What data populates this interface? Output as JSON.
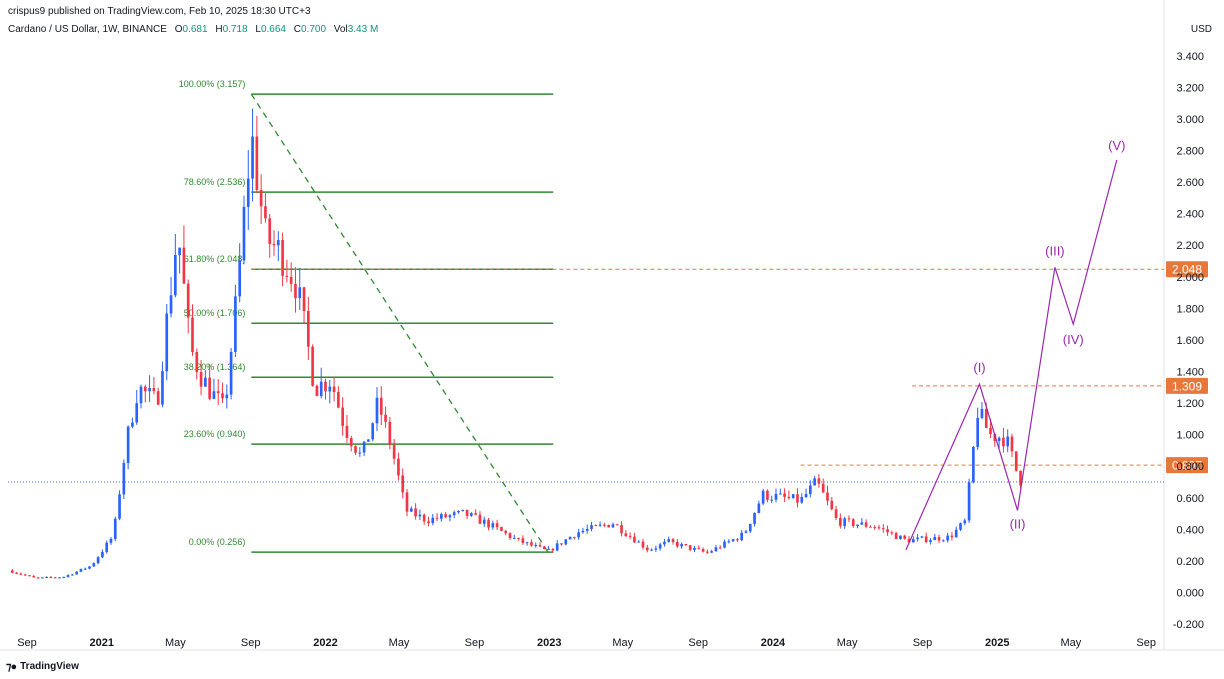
{
  "header": {
    "publisher": "crispus9 published on TradingView.com, Feb 10, 2025 18:30 UTC+3",
    "symbol": "Cardano / US Dollar, 1W, BINANCE",
    "ohlc": [
      {
        "k": "O",
        "v": "0.681"
      },
      {
        "k": "H",
        "v": "0.718"
      },
      {
        "k": "L",
        "v": "0.664"
      },
      {
        "k": "C",
        "v": "0.700"
      },
      {
        "k": "Vol",
        "v": "3.43 M"
      }
    ],
    "currency": "USD"
  },
  "footer": {
    "logo_text": "TradingView"
  },
  "colors": {
    "up": "#2962ff",
    "down": "#f23645",
    "fib": "#2e8b2e",
    "level": "#e8773a",
    "wave": "#9c27b0",
    "last": "#4a6cd4"
  },
  "chart_data": {
    "type": "candlestick",
    "title": "",
    "yaxis": {
      "range": [
        -0.25,
        3.5
      ],
      "ticks": [
        "3.400",
        "3.200",
        "3.000",
        "2.800",
        "2.600",
        "2.400",
        "2.200",
        "2.000",
        "1.800",
        "1.600",
        "1.400",
        "1.200",
        "1.000",
        "0.800",
        "0.600",
        "0.400",
        "0.200",
        "0.000",
        "-0.200"
      ],
      "tick_values": [
        3.4,
        3.2,
        3.0,
        2.8,
        2.6,
        2.4,
        2.2,
        2.0,
        1.8,
        1.6,
        1.4,
        1.2,
        1.0,
        0.8,
        0.6,
        0.4,
        0.2,
        0.0,
        -0.2
      ]
    },
    "xaxis": {
      "range": [
        "2020-08-01",
        "2025-09-30"
      ],
      "ticks": [
        {
          "label": "Sep",
          "date": "2020-09-01",
          "bold": false
        },
        {
          "label": "2021",
          "date": "2021-01-01",
          "bold": true
        },
        {
          "label": "May",
          "date": "2021-05-01",
          "bold": false
        },
        {
          "label": "Sep",
          "date": "2021-09-01",
          "bold": false
        },
        {
          "label": "2022",
          "date": "2022-01-01",
          "bold": true
        },
        {
          "label": "May",
          "date": "2022-05-01",
          "bold": false
        },
        {
          "label": "Sep",
          "date": "2022-09-01",
          "bold": false
        },
        {
          "label": "2023",
          "date": "2023-01-01",
          "bold": true
        },
        {
          "label": "May",
          "date": "2023-05-01",
          "bold": false
        },
        {
          "label": "Sep",
          "date": "2023-09-01",
          "bold": false
        },
        {
          "label": "2024",
          "date": "2024-01-01",
          "bold": true
        },
        {
          "label": "May",
          "date": "2024-05-01",
          "bold": false
        },
        {
          "label": "Sep",
          "date": "2024-09-01",
          "bold": false
        },
        {
          "label": "2025",
          "date": "2025-01-01",
          "bold": true
        },
        {
          "label": "May",
          "date": "2025-05-01",
          "bold": false
        },
        {
          "label": "Sep",
          "date": "2025-09-01",
          "bold": false
        }
      ]
    },
    "price_path": [
      [
        "2020-08-01",
        0.14
      ],
      [
        "2020-09-15",
        0.09
      ],
      [
        "2020-11-01",
        0.1
      ],
      [
        "2020-12-15",
        0.17
      ],
      [
        "2021-01-20",
        0.36
      ],
      [
        "2021-02-10",
        0.95
      ],
      [
        "2021-03-01",
        1.3
      ],
      [
        "2021-04-01",
        1.2
      ],
      [
        "2021-05-05",
        2.3
      ],
      [
        "2021-05-25",
        1.55
      ],
      [
        "2021-06-15",
        1.35
      ],
      [
        "2021-07-20",
        1.15
      ],
      [
        "2021-08-10",
        1.9
      ],
      [
        "2021-09-02",
        2.9
      ],
      [
        "2021-09-25",
        2.25
      ],
      [
        "2021-10-20",
        2.15
      ],
      [
        "2021-11-15",
        1.95
      ],
      [
        "2021-12-15",
        1.3
      ],
      [
        "2022-01-10",
        1.35
      ],
      [
        "2022-02-01",
        1.05
      ],
      [
        "2022-03-01",
        0.85
      ],
      [
        "2022-03-28",
        1.2
      ],
      [
        "2022-04-20",
        0.9
      ],
      [
        "2022-05-12",
        0.52
      ],
      [
        "2022-06-15",
        0.46
      ],
      [
        "2022-08-15",
        0.5
      ],
      [
        "2022-09-20",
        0.44
      ],
      [
        "2022-11-10",
        0.33
      ],
      [
        "2022-12-30",
        0.26
      ],
      [
        "2023-02-15",
        0.38
      ],
      [
        "2023-04-15",
        0.44
      ],
      [
        "2023-06-12",
        0.27
      ],
      [
        "2023-07-15",
        0.32
      ],
      [
        "2023-09-15",
        0.25
      ],
      [
        "2023-11-15",
        0.37
      ],
      [
        "2023-12-15",
        0.62
      ],
      [
        "2024-02-15",
        0.58
      ],
      [
        "2024-03-12",
        0.7
      ],
      [
        "2024-04-15",
        0.45
      ],
      [
        "2024-06-15",
        0.42
      ],
      [
        "2024-08-05",
        0.33
      ],
      [
        "2024-10-15",
        0.35
      ],
      [
        "2024-11-10",
        0.45
      ],
      [
        "2024-11-30",
        1.15
      ],
      [
        "2024-12-20",
        1.0
      ],
      [
        "2025-01-15",
        0.98
      ],
      [
        "2025-02-03",
        0.75
      ],
      [
        "2025-02-10",
        0.7
      ]
    ],
    "fib_levels": [
      {
        "label": "100.00% (3.157)",
        "value": 3.157
      },
      {
        "label": "78.60% (2.536)",
        "value": 2.536
      },
      {
        "label": "61.80% (2.048)",
        "value": 2.048
      },
      {
        "label": "50.00% (1.706)",
        "value": 1.706
      },
      {
        "label": "38.20% (1.364)",
        "value": 1.364
      },
      {
        "label": "23.60% (0.940)",
        "value": 0.94
      },
      {
        "label": "0.00% (0.256)",
        "value": 0.256
      }
    ],
    "fib_start": "2021-09-02",
    "fib_end": "2023-01-01",
    "fib_label_x": "2021-09-02",
    "trend_line": [
      [
        "2021-09-02",
        3.157
      ],
      [
        "2022-12-30",
        0.256
      ]
    ],
    "resistance_levels": [
      {
        "label": "2.048",
        "value": 2.048,
        "from": "2021-09-02"
      },
      {
        "label": "1.309",
        "value": 1.309,
        "from": "2024-08-15"
      },
      {
        "label": "0.807",
        "value": 0.807,
        "from": "2024-02-15"
      }
    ],
    "last_price": 0.7,
    "elliott_waves": [
      {
        "label": "",
        "date": "2024-08-05",
        "value": 0.27
      },
      {
        "label": "(I)",
        "date": "2024-12-03",
        "value": 1.32
      },
      {
        "label": "(II)",
        "date": "2025-02-03",
        "value": 0.52
      },
      {
        "label": "(III)",
        "date": "2025-04-05",
        "value": 2.06
      },
      {
        "label": "(IV)",
        "date": "2025-05-05",
        "value": 1.7
      },
      {
        "label": "(V)",
        "date": "2025-07-15",
        "value": 2.74
      }
    ]
  }
}
